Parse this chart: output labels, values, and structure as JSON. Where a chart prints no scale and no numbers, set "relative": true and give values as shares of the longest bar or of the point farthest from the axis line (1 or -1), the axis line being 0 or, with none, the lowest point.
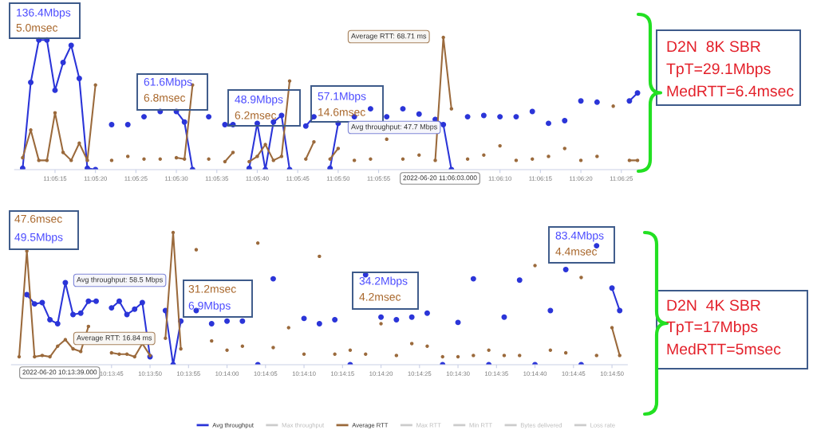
{
  "chart_data": [
    {
      "type": "line",
      "relative": true,
      "tick_labels": "x",
      "marker": "circle",
      "line_style": "solid",
      "legend": false,
      "categories": [
        null,
        null,
        null,
        null,
        "11:05:15",
        null,
        null,
        null,
        null,
        "11:05:20",
        null,
        null,
        null,
        null,
        "11:05:25",
        null,
        null,
        null,
        null,
        "11:05:30",
        null,
        null,
        null,
        null,
        "11:05:35",
        null,
        null,
        null,
        null,
        "11:05:40",
        null,
        null,
        null,
        null,
        "11:05:45",
        null,
        null,
        null,
        null,
        "11:05:50",
        null,
        null,
        null,
        null,
        "11:05:55",
        null,
        null,
        null,
        null,
        null,
        null,
        null,
        null,
        null,
        null,
        null,
        null,
        null,
        null,
        "11:06:10",
        null,
        null,
        null,
        null,
        "11:06:15",
        null,
        null,
        null,
        null,
        "11:06:20",
        null,
        null,
        null,
        null,
        "11:06:25",
        null,
        null
      ],
      "series": [
        {
          "color": "#2b35d8",
          "values": [
            0.01,
            0.66,
            0.98,
            0.98,
            0.6,
            0.81,
            0.94,
            0.69,
            0.01,
            0,
            null,
            0.34,
            null,
            0.34,
            null,
            0.4,
            null,
            0.44,
            null,
            0.44,
            0.36,
            0,
            null,
            0.4,
            null,
            0.34,
            0.34,
            null,
            0.01,
            0.35,
            0,
            0.36,
            0.41,
            0,
            null,
            0.33,
            0.4,
            null,
            0.01,
            0.35,
            null,
            0.4,
            null,
            0.46,
            null,
            0.4,
            null,
            0.46,
            null,
            0.42,
            null,
            0.38,
            0.34,
            0,
            null,
            0.4,
            null,
            0.41,
            null,
            0.4,
            null,
            0.4,
            null,
            0.44,
            null,
            0.35,
            null,
            0.37,
            null,
            0.52,
            null,
            0.51,
            null,
            null,
            null,
            0.52,
            0.58
          ]
        },
        {
          "color": "#9b6a3c",
          "values": [
            0.09,
            0.3,
            0.07,
            0.07,
            0.43,
            0.13,
            0.07,
            0.2,
            0.07,
            0.64,
            null,
            0.07,
            null,
            0.1,
            null,
            0.08,
            null,
            0.08,
            null,
            0.09,
            0.08,
            0.64,
            null,
            0.08,
            null,
            0.06,
            0.13,
            null,
            0.06,
            0.1,
            0.19,
            0.07,
            0.1,
            0.67,
            null,
            0.08,
            0.21,
            null,
            0.08,
            0.16,
            null,
            0.07,
            null,
            0.08,
            null,
            0.23,
            null,
            0.08,
            null,
            0.11,
            null,
            0.07,
            1.0,
            0.46,
            null,
            0.08,
            null,
            0.11,
            null,
            0.18,
            null,
            0.07,
            null,
            0.08,
            null,
            0.1,
            null,
            0.16,
            null,
            0.07,
            null,
            0.1,
            null,
            0.48,
            null,
            0.07,
            0.07
          ]
        }
      ],
      "annotations": [
        "136.4Mbps",
        "5.0msec",
        "61.6Mbps",
        "6.8msec",
        "48.9Mbps",
        "6.2msec",
        "57.1Mbps",
        "14.6msec",
        "Average RTT: 68.71 ms",
        "Avg throughput: 47.7 Mbps",
        "2022-06-20 11:06:03.000",
        "D2N  8K SBR",
        "TpT=29.1Mbps",
        "MedRTT=6.4msec"
      ]
    },
    {
      "type": "line",
      "relative": true,
      "tick_labels": "x",
      "marker": "circle",
      "line_style": "solid",
      "legend": "bottom",
      "categories": [
        null,
        null,
        null,
        null,
        null,
        null,
        null,
        null,
        null,
        null,
        null,
        null,
        "10:13:45",
        null,
        null,
        null,
        null,
        "10:13:50",
        null,
        null,
        null,
        null,
        "10:13:55",
        null,
        null,
        null,
        null,
        "10:14:00",
        null,
        null,
        null,
        null,
        "10:14:05",
        null,
        null,
        null,
        null,
        "10:14:10",
        null,
        null,
        null,
        null,
        "10:14:15",
        null,
        null,
        null,
        null,
        "10:14:20",
        null,
        null,
        null,
        null,
        "10:14:25",
        null,
        null,
        null,
        null,
        "10:14:30",
        null,
        null,
        null,
        null,
        "10:14:35",
        null,
        null,
        null,
        null,
        "10:14:40",
        null,
        null,
        null,
        null,
        "10:14:45",
        null,
        null,
        null,
        null,
        "10:14:50",
        null
      ],
      "series": [
        {
          "name": "Avg throughput",
          "color": "#2b35d8",
          "values": [
            null,
            0.53,
            0.46,
            0.47,
            0.34,
            0.31,
            0.62,
            0.38,
            0.39,
            0.48,
            0.48,
            null,
            0.43,
            0.48,
            0.38,
            0.42,
            0.47,
            0.06,
            null,
            0.41,
            0,
            0.33,
            null,
            0.41,
            null,
            0.31,
            null,
            0.33,
            null,
            0.33,
            null,
            0,
            null,
            0.65,
            null,
            null,
            null,
            0.35,
            null,
            0.31,
            null,
            0.34,
            null,
            0,
            null,
            0.68,
            null,
            0.36,
            null,
            0.34,
            null,
            0.36,
            null,
            0.39,
            null,
            0,
            null,
            0.32,
            null,
            0.65,
            null,
            0,
            null,
            0.36,
            null,
            0.64,
            null,
            0,
            null,
            0.41,
            null,
            0.72,
            null,
            0,
            null,
            0.9,
            null,
            0.58,
            0.41
          ]
        },
        {
          "name": "Max throughput",
          "color": "#cccccc",
          "values": [
            null,
            null,
            null,
            null,
            null,
            null,
            null,
            null,
            null,
            null,
            null,
            null,
            null,
            null,
            null,
            null,
            null,
            null,
            null,
            null,
            null,
            null,
            null,
            null,
            null,
            null,
            null,
            null,
            null,
            null,
            null,
            null,
            null,
            null,
            null,
            null,
            null,
            null,
            null,
            null,
            null,
            null,
            null,
            null,
            null,
            null,
            null,
            null,
            null,
            null,
            null,
            null,
            null,
            null,
            null,
            null,
            null,
            null,
            null,
            null,
            null,
            null,
            null,
            null,
            null,
            null,
            null,
            null,
            null,
            null,
            null,
            null,
            null,
            null,
            null,
            null,
            null,
            null,
            null
          ]
        },
        {
          "name": "Average RTT",
          "color": "#9b6a3c",
          "values": [
            0.06,
            0.86,
            0.06,
            0.07,
            0.06,
            0.14,
            0.19,
            0.12,
            0.1,
            0.29,
            null,
            null,
            0.09,
            0.08,
            0.08,
            0.06,
            0.16,
            0.07,
            null,
            0.2,
            1.0,
            0.12,
            null,
            0.87,
            null,
            0.18,
            null,
            0.11,
            null,
            0.14,
            null,
            0.92,
            null,
            0.13,
            null,
            0.28,
            null,
            0.08,
            null,
            0.82,
            null,
            0.08,
            null,
            0.11,
            null,
            0.08,
            null,
            0.31,
            null,
            0.07,
            null,
            0.16,
            null,
            0.14,
            null,
            0.06,
            null,
            0.06,
            null,
            0.07,
            null,
            0.11,
            null,
            0.07,
            null,
            0.07,
            null,
            0.75,
            null,
            0.11,
            null,
            0.09,
            null,
            0.66,
            null,
            0.07,
            null,
            0.28,
            0.07
          ]
        },
        {
          "name": "Max RTT",
          "color": "#cccccc",
          "values": [
            null,
            null,
            null,
            null,
            null,
            null,
            null,
            null,
            null,
            null,
            null,
            null,
            null,
            null,
            null,
            null,
            null,
            null,
            null,
            null,
            null,
            null,
            null,
            null,
            null,
            null,
            null,
            null,
            null,
            null,
            null,
            null,
            null,
            null,
            null,
            null,
            null,
            null,
            null,
            null,
            null,
            null,
            null,
            null,
            null,
            null,
            null,
            null,
            null,
            null,
            null,
            null,
            null,
            null,
            null,
            null,
            null,
            null,
            null,
            null,
            null,
            null,
            null,
            null,
            null,
            null,
            null,
            null,
            null,
            null,
            null,
            null,
            null,
            null,
            null,
            null,
            null,
            null,
            null
          ]
        },
        {
          "name": "Min RTT",
          "color": "#cccccc",
          "values": [
            null,
            null,
            null,
            null,
            null,
            null,
            null,
            null,
            null,
            null,
            null,
            null,
            null,
            null,
            null,
            null,
            null,
            null,
            null,
            null,
            null,
            null,
            null,
            null,
            null,
            null,
            null,
            null,
            null,
            null,
            null,
            null,
            null,
            null,
            null,
            null,
            null,
            null,
            null,
            null,
            null,
            null,
            null,
            null,
            null,
            null,
            null,
            null,
            null,
            null,
            null,
            null,
            null,
            null,
            null,
            null,
            null,
            null,
            null,
            null,
            null,
            null,
            null,
            null,
            null,
            null,
            null,
            null,
            null,
            null,
            null,
            null,
            null,
            null,
            null,
            null,
            null,
            null,
            null
          ]
        },
        {
          "name": "Bytes delivered",
          "color": "#cccccc",
          "values": [
            null,
            null,
            null,
            null,
            null,
            null,
            null,
            null,
            null,
            null,
            null,
            null,
            null,
            null,
            null,
            null,
            null,
            null,
            null,
            null,
            null,
            null,
            null,
            null,
            null,
            null,
            null,
            null,
            null,
            null,
            null,
            null,
            null,
            null,
            null,
            null,
            null,
            null,
            null,
            null,
            null,
            null,
            null,
            null,
            null,
            null,
            null,
            null,
            null,
            null,
            null,
            null,
            null,
            null,
            null,
            null,
            null,
            null,
            null,
            null,
            null,
            null,
            null,
            null,
            null,
            null,
            null,
            null,
            null,
            null,
            null,
            null,
            null,
            null,
            null,
            null,
            null,
            null,
            null
          ]
        },
        {
          "name": "Loss rate",
          "color": "#cccccc",
          "values": [
            null,
            null,
            null,
            null,
            null,
            null,
            null,
            null,
            null,
            null,
            null,
            null,
            null,
            null,
            null,
            null,
            null,
            null,
            null,
            null,
            null,
            null,
            null,
            null,
            null,
            null,
            null,
            null,
            null,
            null,
            null,
            null,
            null,
            null,
            null,
            null,
            null,
            null,
            null,
            null,
            null,
            null,
            null,
            null,
            null,
            null,
            null,
            null,
            null,
            null,
            null,
            null,
            null,
            null,
            null,
            null,
            null,
            null,
            null,
            null,
            null,
            null,
            null,
            null,
            null,
            null,
            null,
            null,
            null,
            null,
            null,
            null,
            null,
            null,
            null,
            null,
            null,
            null,
            null
          ]
        }
      ],
      "annotations": [
        "47.6msec",
        "49.5Mbps",
        "31.2msec",
        "6.9Mbps",
        "34.2Mbps",
        "4.2msec",
        "83.4Mbps",
        "4.4msec",
        "Avg throughput: 58.5 Mbps",
        "Average RTT: 16.84 ms",
        "2022-06-20 10:13:39.000",
        "D2N  4K SBR",
        "TpT=17Mbps",
        "MedRTT=5msec"
      ]
    }
  ]
}
